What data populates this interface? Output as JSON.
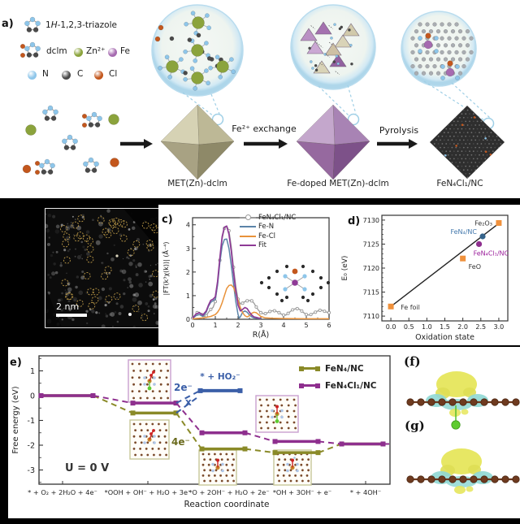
{
  "figure": {
    "panel_a": {
      "label": "a)",
      "legend": {
        "triazole_pre": "1",
        "triazole_h": "H",
        "triazole_post": "-1,2,3-triazole",
        "dclm": "dclm",
        "zn": "Zn²⁺",
        "fe": "Fe",
        "n": "N",
        "c": "C",
        "cl": "Cl"
      },
      "atom_colors": {
        "n": "#8ec6ea",
        "c": "#4a4a4a",
        "cl": "#c3571d",
        "zn": "#8ba33c",
        "fe": "#a66bb0"
      },
      "arrow1_label": "Fe²⁺ exchange",
      "arrow2_label": "Pyrolysis",
      "product1": "MET(Zn)-dclm",
      "product2": "Fe-doped MET(Zn)-dclm",
      "product3": "FeN₄Cl₁/NC"
    },
    "panel_b": {
      "scale_bar": "2 nm"
    },
    "panel_c": {
      "label": "c)"
    },
    "panel_d": {
      "label": "d)"
    },
    "panel_e": {
      "label": "e)",
      "condition": "U = 0 V"
    },
    "panel_f": {
      "label": "(f)"
    },
    "panel_g": {
      "label": "(g)"
    }
  },
  "chart_data": [
    {
      "id": "exafs_fit",
      "type": "line",
      "xlabel": "R(Å)",
      "ylabel": "|FT(k³χ(k))| (Å⁻⁴)",
      "xlim": [
        0,
        6
      ],
      "ylim": [
        0,
        4.3
      ],
      "xticks": [
        0,
        1,
        2,
        3,
        4,
        5,
        6
      ],
      "yticks": [
        0,
        1,
        2,
        3,
        4
      ],
      "legend_position": "top-right",
      "grid": false,
      "series": [
        {
          "name": "FeN₄Cl₁/NC",
          "color": "#9a9a9a",
          "marker": "open-circle",
          "x": [
            0,
            0.1,
            0.2,
            0.3,
            0.4,
            0.5,
            0.6,
            0.7,
            0.8,
            0.9,
            1.0,
            1.1,
            1.2,
            1.3,
            1.4,
            1.5,
            1.6,
            1.7,
            1.8,
            1.9,
            2.0,
            2.1,
            2.2,
            2.3,
            2.4,
            2.5,
            2.6,
            2.7,
            2.8,
            2.9,
            3.0,
            3.1,
            3.2,
            3.3,
            3.4,
            3.5,
            3.6,
            3.7,
            3.8,
            3.9,
            4.0,
            4.1,
            4.2,
            4.3,
            4.4,
            4.5,
            4.6,
            4.7,
            4.8,
            4.9,
            5.0,
            5.1,
            5.2,
            5.3,
            5.4,
            5.5,
            5.6,
            5.7,
            5.8,
            5.9,
            6.0
          ],
          "y": [
            0.05,
            0.15,
            0.28,
            0.3,
            0.2,
            0.12,
            0.15,
            0.3,
            0.42,
            0.5,
            0.75,
            1.5,
            2.5,
            3.4,
            3.85,
            3.95,
            3.75,
            3.1,
            2.2,
            1.4,
            0.85,
            0.65,
            0.68,
            0.75,
            0.78,
            0.8,
            0.78,
            0.68,
            0.52,
            0.38,
            0.28,
            0.24,
            0.24,
            0.28,
            0.33,
            0.36,
            0.36,
            0.33,
            0.28,
            0.22,
            0.18,
            0.18,
            0.25,
            0.33,
            0.4,
            0.44,
            0.45,
            0.42,
            0.35,
            0.27,
            0.2,
            0.18,
            0.2,
            0.25,
            0.3,
            0.35,
            0.38,
            0.38,
            0.34,
            0.3,
            0.28
          ]
        },
        {
          "name": "Fe-N",
          "color": "#5b84a8",
          "x": [
            0,
            0.15,
            0.3,
            0.45,
            0.6,
            0.7,
            0.8,
            0.9,
            1.0,
            1.1,
            1.2,
            1.3,
            1.4,
            1.5,
            1.6,
            1.7,
            1.8,
            1.9,
            2.0,
            2.05,
            2.1,
            2.2,
            2.3,
            2.4,
            2.5,
            2.6,
            2.7,
            2.8,
            3.0
          ],
          "y": [
            0.03,
            0.15,
            0.2,
            0.12,
            0.3,
            0.55,
            0.72,
            0.78,
            0.85,
            1.45,
            2.4,
            3.1,
            3.38,
            3.4,
            3.0,
            2.3,
            1.5,
            0.75,
            0.2,
            0.05,
            0.1,
            0.3,
            0.35,
            0.3,
            0.18,
            0.1,
            0.06,
            0.04,
            0.02
          ]
        },
        {
          "name": "Fe-Cl",
          "color": "#e8923a",
          "x": [
            0,
            0.3,
            0.6,
            0.8,
            1.0,
            1.1,
            1.2,
            1.3,
            1.4,
            1.5,
            1.6,
            1.7,
            1.8,
            1.9,
            2.0,
            2.1,
            2.2,
            2.3,
            2.4,
            2.5,
            2.6,
            2.7,
            2.8,
            2.9,
            3.0,
            3.2,
            3.5,
            4.0,
            5.0,
            6.0
          ],
          "y": [
            0.02,
            0.04,
            0.08,
            0.12,
            0.2,
            0.3,
            0.45,
            0.7,
            1.0,
            1.3,
            1.43,
            1.45,
            1.35,
            1.1,
            0.8,
            0.5,
            0.28,
            0.15,
            0.1,
            0.15,
            0.25,
            0.3,
            0.28,
            0.2,
            0.12,
            0.06,
            0.04,
            0.03,
            0.02,
            0.02
          ]
        },
        {
          "name": "Fit",
          "color": "#8e3a96",
          "x": [
            0,
            0.15,
            0.3,
            0.45,
            0.6,
            0.7,
            0.8,
            0.9,
            1.0,
            1.1,
            1.2,
            1.3,
            1.4,
            1.5,
            1.6,
            1.7,
            1.8,
            1.9,
            2.0,
            2.1,
            2.2,
            2.3,
            2.4,
            2.5,
            2.6,
            2.7,
            2.8,
            2.9,
            3.0
          ],
          "y": [
            0.05,
            0.22,
            0.28,
            0.18,
            0.35,
            0.6,
            0.8,
            0.85,
            0.95,
            1.6,
            2.6,
            3.5,
            3.9,
            3.95,
            3.6,
            2.9,
            2.0,
            1.2,
            0.6,
            0.35,
            0.42,
            0.5,
            0.45,
            0.3,
            0.18,
            0.1,
            0.08,
            0.05,
            0.04
          ]
        }
      ]
    },
    {
      "id": "xanes_e0",
      "type": "scatter",
      "xlabel": "Oxidation state",
      "ylabel": "E₀ (eV)",
      "xlim": [
        -0.25,
        3.25
      ],
      "ylim": [
        7109,
        7131
      ],
      "xticks": [
        0.0,
        0.5,
        1.0,
        1.5,
        2.0,
        2.5,
        3.0
      ],
      "yticks": [
        7110,
        7115,
        7120,
        7125,
        7130
      ],
      "fit_line": {
        "x1": 0,
        "y1": 7112,
        "x2": 3.05,
        "y2": 7129.6,
        "color": "#222222"
      },
      "points": [
        {
          "label": "Fe foil",
          "x": 0.0,
          "y": 7112.0,
          "color": "#f0913c",
          "shape": "square",
          "label_color": "#333333"
        },
        {
          "label": "FeO",
          "x": 2.0,
          "y": 7122.0,
          "color": "#f0913c",
          "shape": "square",
          "label_color": "#333333"
        },
        {
          "label": "Fe₂O₃",
          "x": 3.0,
          "y": 7129.4,
          "color": "#f0913c",
          "shape": "square",
          "label_color": "#333333"
        },
        {
          "label": "FeN₄/NC",
          "x": 2.55,
          "y": 7126.6,
          "color": "#36648b",
          "shape": "circle",
          "label_color": "#4479ad"
        },
        {
          "label": "FeN₄Cl₁/NC",
          "x": 2.45,
          "y": 7125.0,
          "color": "#8e2f8e",
          "shape": "circle",
          "label_color": "#9b1f9b"
        }
      ]
    },
    {
      "id": "free_energy",
      "type": "step-diagram",
      "xlabel": "Reaction coordinate",
      "ylabel": "Free energy (eV)",
      "ylim": [
        -3.6,
        1.6
      ],
      "yticks": [
        1,
        0,
        -1,
        -2,
        -3
      ],
      "categories": [
        "* + O₂ + 2H₂O + 4e⁻",
        "*OOH + OH⁻ + H₂O + 3e⁻",
        "*O + 2OH⁻ + H₂O + 2e⁻",
        "*OH + 3OH⁻ + e⁻",
        "* + 4OH⁻"
      ],
      "series": [
        {
          "name": "FeN₄/NC",
          "color": "#8a8a28",
          "values": [
            0,
            -0.7,
            -2.15,
            -2.3,
            -1.95
          ]
        },
        {
          "name": "FeN₄Cl₁/NC",
          "color": "#8e2f8e",
          "values": [
            0,
            -0.3,
            -1.5,
            -1.85,
            -1.95
          ]
        }
      ],
      "branch": {
        "name": "* + HO₂⁻",
        "color": "#3b5fa8",
        "value": 0.2,
        "at_step": 3
      },
      "annotations": [
        {
          "text": "2e⁻",
          "color": "#3b5fa8"
        },
        {
          "text": "x",
          "color": "#3b5fa8"
        },
        {
          "text": "4e⁻",
          "color": "#6b6b1e"
        },
        {
          "text": "U = 0 V",
          "color": "#333333"
        }
      ],
      "legend_position": "top-right"
    }
  ]
}
